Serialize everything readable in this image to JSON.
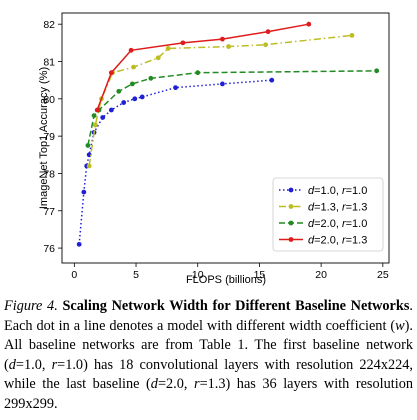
{
  "chart_data": {
    "type": "line",
    "xlabel": "FLOPS (billions)",
    "ylabel": "ImageNet Top1 Accuracy (%)",
    "xlim": [
      -1,
      25.5
    ],
    "ylim": [
      75.6,
      82.3
    ],
    "xticks": [
      0,
      5,
      10,
      15,
      20,
      25
    ],
    "yticks": [
      76,
      77,
      78,
      79,
      80,
      81,
      82
    ],
    "grid": false,
    "legend_position": "lower-right",
    "series": [
      {
        "d": "1.0",
        "r": "1.0",
        "color": "#1f1fd6",
        "linestyle": "dotted",
        "points": [
          [
            0.39,
            76.1
          ],
          [
            0.77,
            77.5
          ],
          [
            1.0,
            78.2
          ],
          [
            1.2,
            78.5
          ],
          [
            1.6,
            79.1
          ],
          [
            2.3,
            79.5
          ],
          [
            3.0,
            79.7
          ],
          [
            4.0,
            79.9
          ],
          [
            4.9,
            80.0
          ],
          [
            5.5,
            80.05
          ],
          [
            8.2,
            80.3
          ],
          [
            12.0,
            80.4
          ],
          [
            16.0,
            80.5
          ]
        ]
      },
      {
        "d": "1.3",
        "r": "1.3",
        "color": "#bcbd22",
        "linestyle": "dashdot",
        "points": [
          [
            1.2,
            78.2
          ],
          [
            1.7,
            79.3
          ],
          [
            2.2,
            80.0
          ],
          [
            3.1,
            80.7
          ],
          [
            4.8,
            80.85
          ],
          [
            6.8,
            81.1
          ],
          [
            7.6,
            81.35
          ],
          [
            12.5,
            81.4
          ],
          [
            15.5,
            81.45
          ],
          [
            22.5,
            81.7
          ]
        ]
      },
      {
        "d": "2.0",
        "r": "1.0",
        "color": "#228b22",
        "linestyle": "dashed",
        "points": [
          [
            1.1,
            78.75
          ],
          [
            1.6,
            79.55
          ],
          [
            2.0,
            79.7
          ],
          [
            3.6,
            80.2
          ],
          [
            4.7,
            80.4
          ],
          [
            6.2,
            80.55
          ],
          [
            10.0,
            80.7
          ],
          [
            24.5,
            80.75
          ]
        ]
      },
      {
        "d": "2.0",
        "r": "1.3",
        "color": "#e01b1b",
        "linestyle": "solid",
        "points": [
          [
            1.85,
            79.7
          ],
          [
            3.0,
            80.7
          ],
          [
            4.6,
            81.3
          ],
          [
            8.8,
            81.5
          ],
          [
            12.0,
            81.6
          ],
          [
            15.7,
            81.8
          ],
          [
            19.0,
            82.0
          ]
        ]
      }
    ]
  },
  "caption": {
    "fig_label": "Figure 4.",
    "title": "Scaling Network Width for Different Baseline Networks",
    "body_1": ". Each dot in a line denotes a model with different width coefficient (",
    "w_symbol": "w",
    "body_2": "). All baseline networks are from Table 1. The first baseline network (",
    "d_symbol": "d",
    "d_value_1": "=1.0, ",
    "r_symbol": "r",
    "r_value_1": "=1.0) has 18 convolutional layers with resolution 224x224, while the last baseline (",
    "d_symbol_2": "d",
    "d_value_2": "=2.0, ",
    "r_symbol_2": "r",
    "r_value_2": "=1.3) has 36 layers with resolution 299x299."
  }
}
